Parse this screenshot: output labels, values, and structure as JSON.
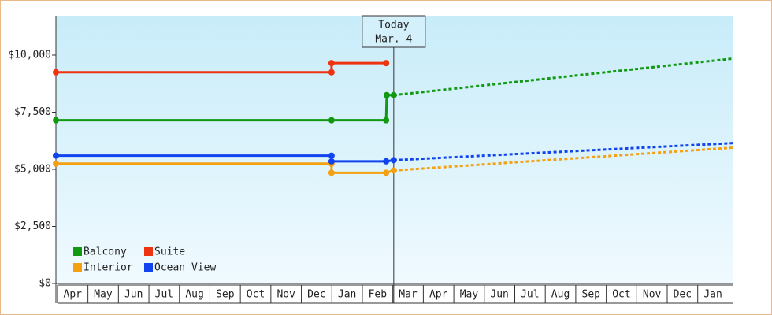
{
  "chart_data": {
    "type": "line",
    "xlim": [
      -0.05,
      22.17
    ],
    "xticks": [
      {
        "value": 0.5,
        "label": "Apr"
      },
      {
        "value": 1.5,
        "label": "May"
      },
      {
        "value": 2.5,
        "label": "Jun"
      },
      {
        "value": 3.5,
        "label": "Jul"
      },
      {
        "value": 4.5,
        "label": "Aug"
      },
      {
        "value": 5.5,
        "label": "Sep"
      },
      {
        "value": 6.5,
        "label": "Oct"
      },
      {
        "value": 7.5,
        "label": "Nov"
      },
      {
        "value": 8.5,
        "label": "Dec"
      },
      {
        "value": 9.5,
        "label": "Jan"
      },
      {
        "value": 10.5,
        "label": "Feb"
      },
      {
        "value": 11.5,
        "label": "Mar"
      },
      {
        "value": 12.5,
        "label": "Apr"
      },
      {
        "value": 13.5,
        "label": "May"
      },
      {
        "value": 14.5,
        "label": "Jun"
      },
      {
        "value": 15.5,
        "label": "Jul"
      },
      {
        "value": 16.5,
        "label": "Aug"
      },
      {
        "value": 17.5,
        "label": "Sep"
      },
      {
        "value": 18.5,
        "label": "Oct"
      },
      {
        "value": 19.5,
        "label": "Nov"
      },
      {
        "value": 20.5,
        "label": "Dec"
      },
      {
        "value": 21.5,
        "label": "Jan"
      }
    ],
    "ylim": [
      0,
      11724
    ],
    "yticks": [
      {
        "value": 0,
        "label": "$0"
      },
      {
        "value": 2500,
        "label": "$2,500"
      },
      {
        "value": 5000,
        "label": "$5,000"
      },
      {
        "value": 7500,
        "label": "$7,500"
      },
      {
        "value": 10000,
        "label": "$10,000"
      }
    ],
    "annotation": {
      "text": [
        "Today",
        "Mar. 4"
      ],
      "x": 11.03
    },
    "legend": "lower left",
    "series": [
      {
        "name": "Balcony",
        "color": "#119911",
        "x": [
          -0.05,
          8.99,
          10.78,
          10.8,
          11.03
        ],
        "values": [
          7150,
          7150,
          7150,
          8250,
          8250
        ],
        "forecast_x": [
          11.03,
          22.17
        ],
        "forecast_values": [
          8250,
          9850
        ]
      },
      {
        "name": "Suite",
        "color": "#ee3311",
        "x": [
          -0.05,
          8.99,
          8.99,
          10.78
        ],
        "values": [
          9250,
          9250,
          9650,
          9650
        ],
        "forecast_x": [],
        "forecast_values": []
      },
      {
        "name": "Interior",
        "color": "#f5a011",
        "x": [
          -0.05,
          8.99,
          8.99,
          10.78,
          11.03
        ],
        "values": [
          5250,
          5250,
          4850,
          4850,
          4950
        ],
        "forecast_x": [
          11.03,
          22.17
        ],
        "forecast_values": [
          4950,
          5950
        ]
      },
      {
        "name": "Ocean View",
        "color": "#1144ee",
        "x": [
          -0.05,
          8.99,
          8.99,
          10.78,
          11.03
        ],
        "values": [
          5600,
          5600,
          5350,
          5350,
          5400
        ],
        "forecast_x": [
          11.03,
          22.17
        ],
        "forecast_values": [
          5400,
          6150
        ]
      }
    ]
  }
}
